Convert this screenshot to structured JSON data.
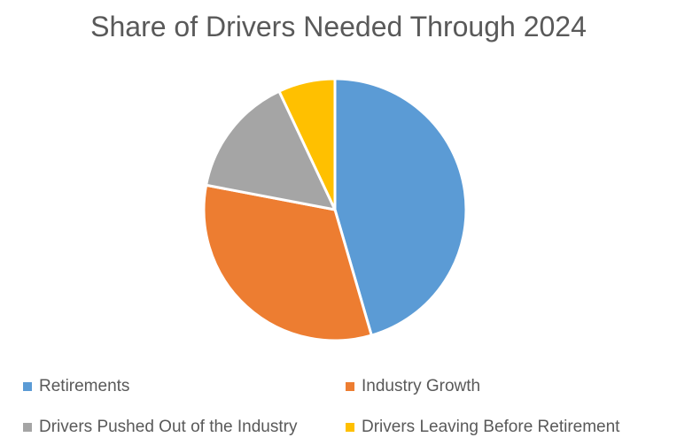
{
  "chart_data": {
    "type": "pie",
    "title": "Share of Drivers Needed Through 2024",
    "legend_position": "bottom",
    "slices": [
      {
        "label": "Retirements",
        "value": 45.5,
        "color": "#5B9BD5"
      },
      {
        "label": "Industry Growth",
        "value": 32.5,
        "color": "#ED7D31"
      },
      {
        "label": "Drivers Pushed Out of the Industry",
        "value": 15,
        "color": "#A5A5A5"
      },
      {
        "label": "Drivers Leaving Before Retirement",
        "value": 7,
        "color": "#FFC000"
      }
    ]
  }
}
